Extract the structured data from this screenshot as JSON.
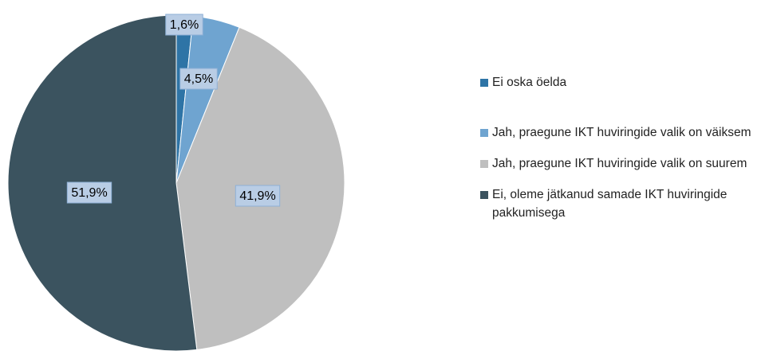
{
  "chart_data": {
    "type": "pie",
    "categories": [
      "Ei oska öelda",
      "Jah, praegune IKT huviringide valik on väiksem",
      "Jah, praegune IKT huviringide valik on suurem",
      "Ei, oleme jätkanud samade IKT huviringide pakkumisega"
    ],
    "values": [
      1.6,
      4.5,
      41.9,
      51.9
    ],
    "value_labels": [
      "1,6%",
      "4,5%",
      "41,9%",
      "51,9%"
    ],
    "colors": [
      "#2e74a6",
      "#6fa4d0",
      "#bfbfbf",
      "#3b535f"
    ],
    "legend": "right"
  }
}
